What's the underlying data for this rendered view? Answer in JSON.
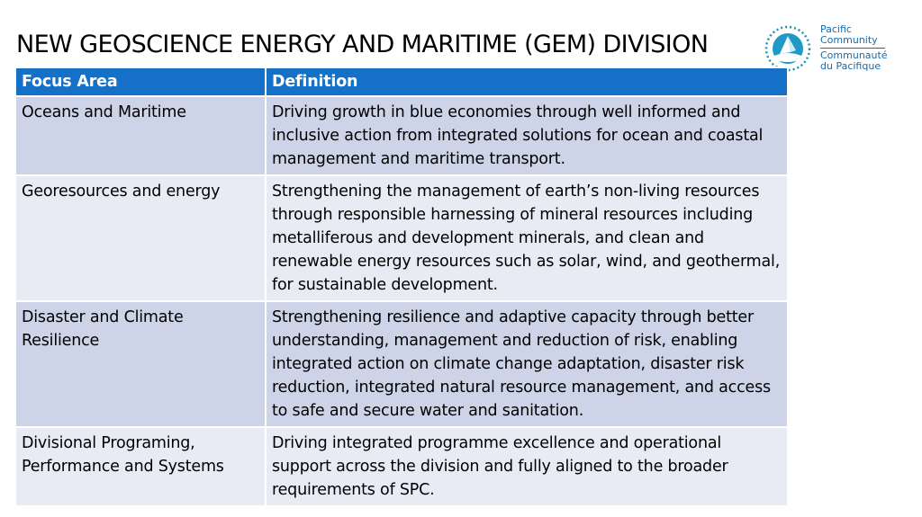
{
  "title": "NEW GEOSCIENCE ENERGY AND MARITIME (GEM) DIVISION",
  "logo": {
    "icon": "pacific-community-logo-icon",
    "lines": [
      "Pacific",
      "Community",
      "Communauté",
      "du Pacifique"
    ],
    "color": "#1b6aa8"
  },
  "table": {
    "headers": [
      "Focus Area",
      "Definition"
    ],
    "header_color": "#1570c8",
    "row_colors": [
      "#cdd4e8",
      "#e8ebf4"
    ],
    "rows": [
      {
        "focus": "Oceans and Maritime",
        "definition": "Driving growth in blue economies through well informed and inclusive action from integrated solutions for ocean and coastal management and maritime transport."
      },
      {
        "focus": "Georesources and energy",
        "definition": "Strengthening the management of earth’s non-living resources through responsible harnessing of mineral resources including metalliferous and development minerals, and clean and renewable energy resources such as solar, wind, and geothermal, for sustainable development."
      },
      {
        "focus": "Disaster and Climate Resilience",
        "definition": "Strengthening resilience and adaptive capacity through better understanding, management and reduction of risk, enabling integrated action on climate change adaptation, disaster risk reduction, integrated natural resource management, and access to safe and secure water and sanitation."
      },
      {
        "focus": "Divisional Programing, Performance and Systems",
        "definition": "Driving integrated programme excellence and operational support across the division and fully aligned to the broader requirements of SPC."
      }
    ]
  }
}
